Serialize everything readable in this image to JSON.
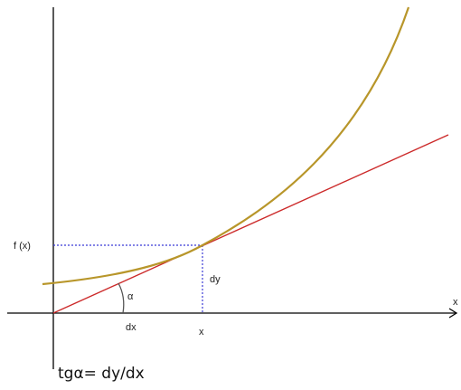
{
  "labels": {
    "fx": "f (x)",
    "dy": "dy",
    "alpha": "α",
    "dx": "dx",
    "x_point": "x",
    "x_axis": "x",
    "formula": "tgα= dy/dx"
  },
  "colors": {
    "axis": "#000000",
    "curve": "#b8962a",
    "tangent": "#cc2a2a",
    "guide": "#3b3bd6",
    "angle_arc": "#555555"
  }
}
